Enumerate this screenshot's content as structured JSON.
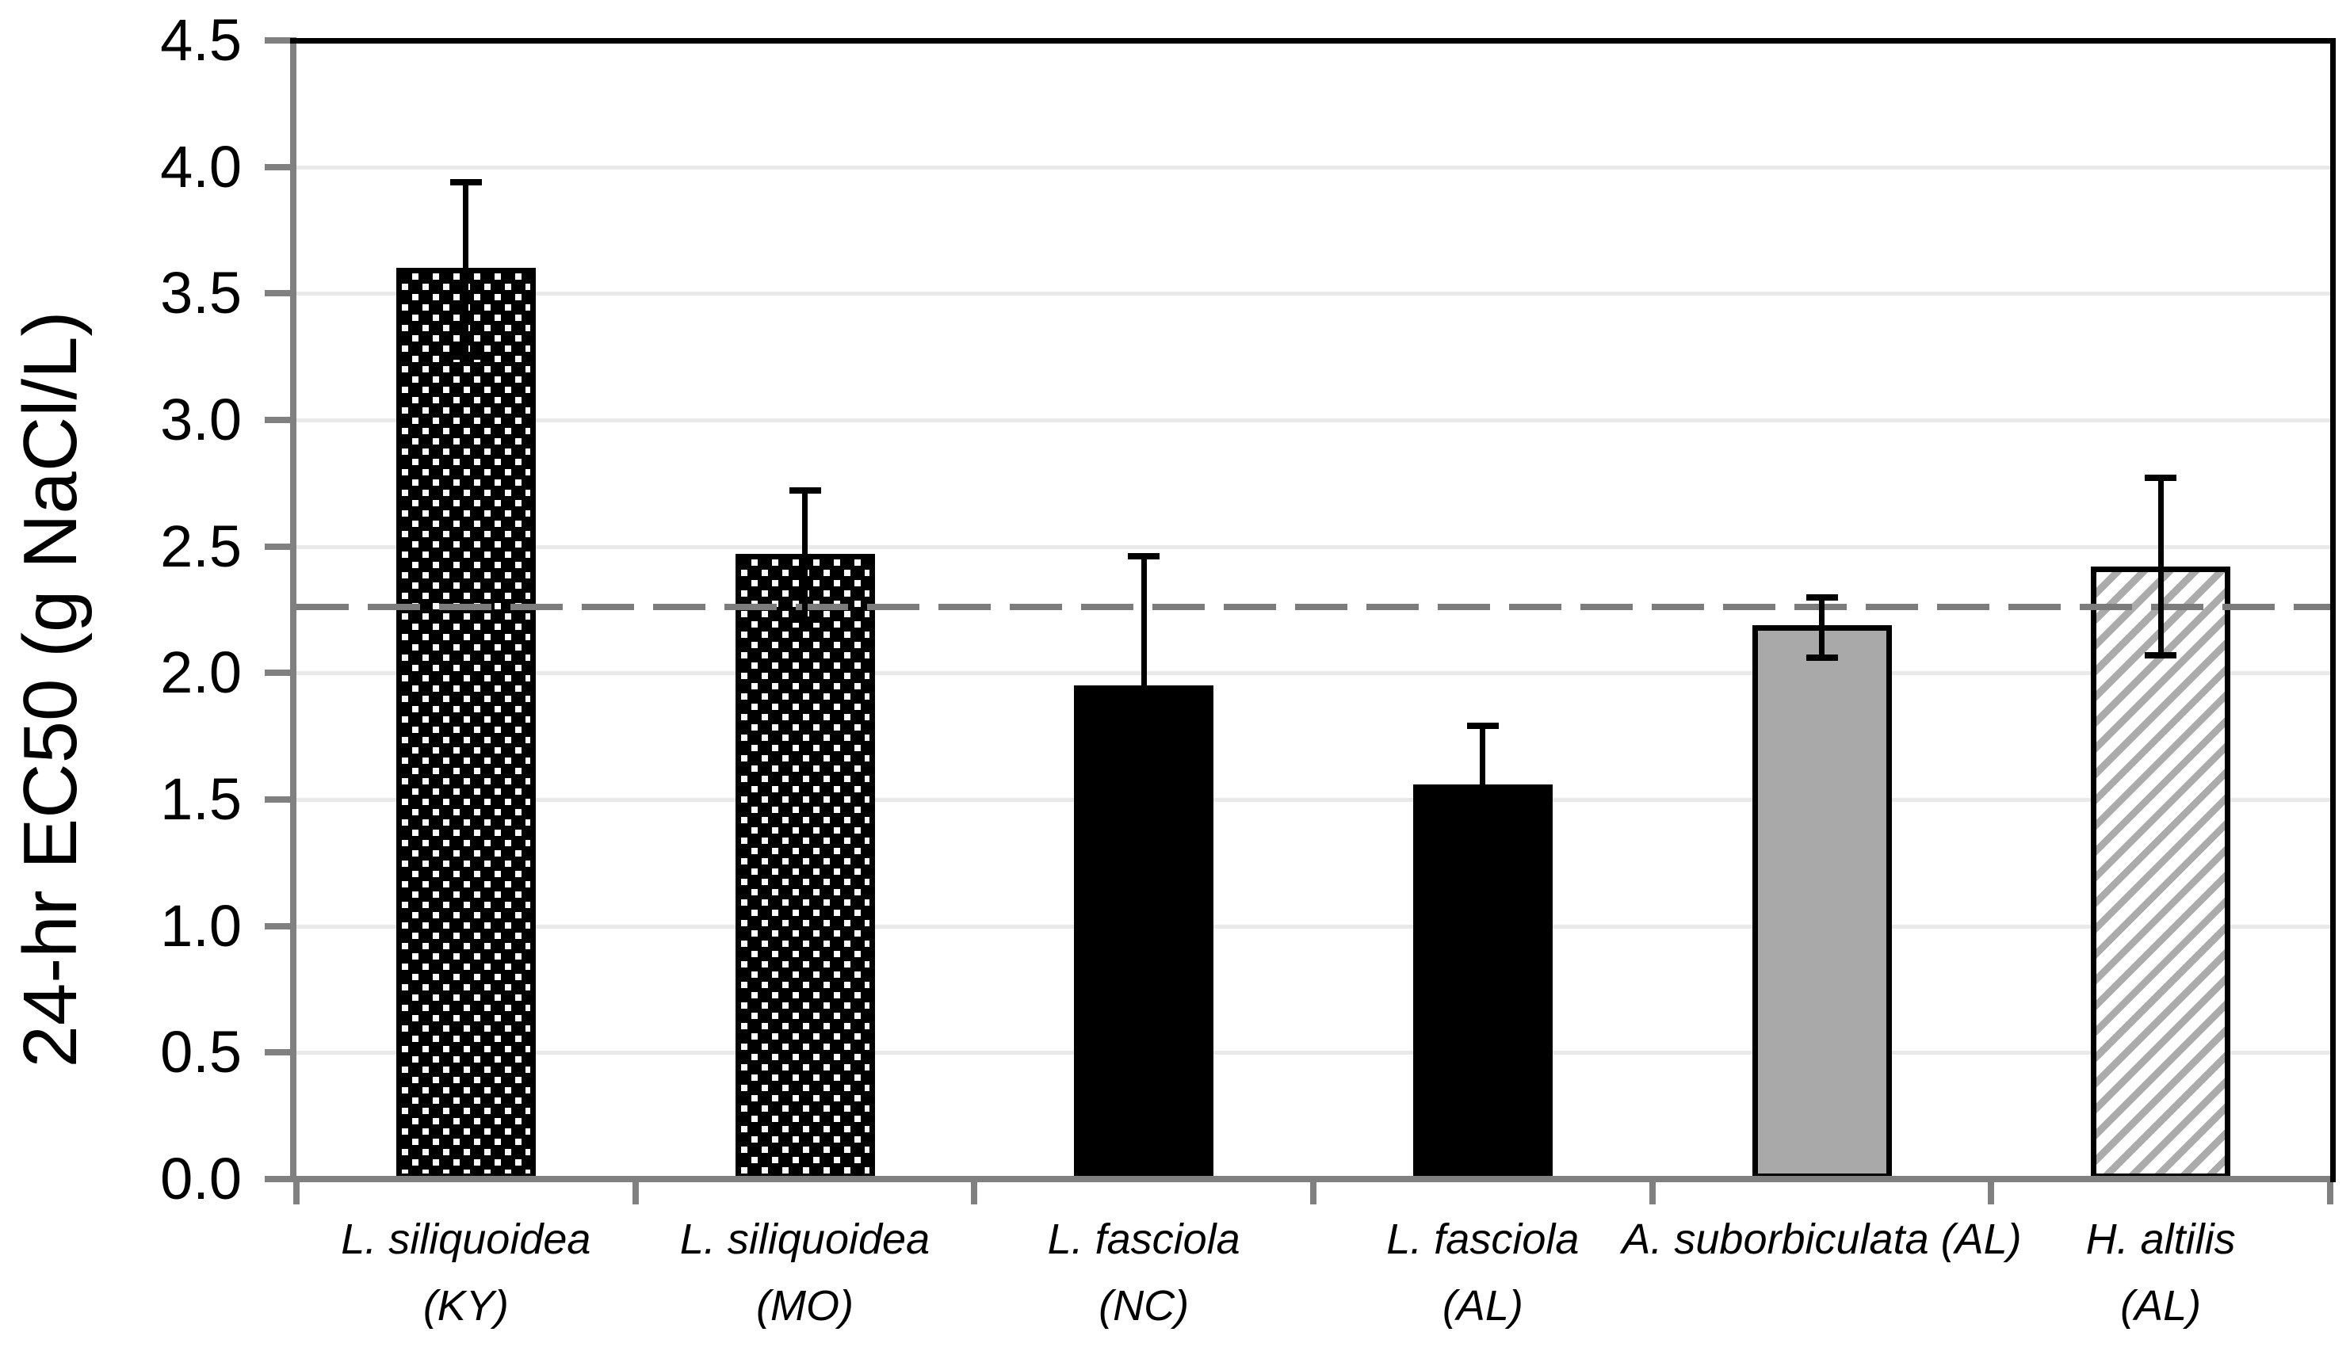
{
  "chart_data": {
    "type": "bar",
    "title": "",
    "xlabel": "",
    "ylabel": "24-hr EC50 (g NaCl/L)",
    "ylim": [
      0,
      4.5
    ],
    "ytick_step": 0.5,
    "ytick_labels": [
      "0.0",
      "0.5",
      "1.0",
      "1.5",
      "2.0",
      "2.5",
      "3.0",
      "3.5",
      "4.0",
      "4.5"
    ],
    "grid": "horizontal",
    "legend": "none",
    "reference_line": {
      "value": 2.26,
      "style": "dashed",
      "color": "#7c7c7c"
    },
    "categories": [
      {
        "line1": "L. siliquoidea",
        "line2": "(KY)"
      },
      {
        "line1": "L. siliquoidea",
        "line2": "(MO)"
      },
      {
        "line1": "L. fasciola",
        "line2": "(NC)"
      },
      {
        "line1": "L. fasciola",
        "line2": "(AL)"
      },
      {
        "line1": "A. suborbiculata (AL)",
        "line2": ""
      },
      {
        "line1": "H. altilis",
        "line2": "(AL)"
      }
    ],
    "bars": [
      {
        "label": "L. siliquoidea (KY)",
        "value": 3.6,
        "error_upper": 3.94,
        "error_lower": 3.25,
        "pattern": "dots"
      },
      {
        "label": "L. siliquoidea (MO)",
        "value": 2.47,
        "error_upper": 2.72,
        "error_lower": 2.21,
        "pattern": "dots"
      },
      {
        "label": "L. fasciola (NC)",
        "value": 1.95,
        "error_upper": 2.46,
        "error_lower": null,
        "pattern": "solid-black"
      },
      {
        "label": "L. fasciola (AL)",
        "value": 1.56,
        "error_upper": 1.79,
        "error_lower": null,
        "pattern": "solid-black"
      },
      {
        "label": "A. suborbiculata (AL)",
        "value": 2.19,
        "error_upper": 2.3,
        "error_lower": 2.06,
        "pattern": "solid-gray"
      },
      {
        "label": "H. altilis (AL)",
        "value": 2.42,
        "error_upper": 2.77,
        "error_lower": 2.07,
        "pattern": "hatch"
      }
    ],
    "colors": {
      "bar_outline": "#000000",
      "solid_black_fill": "#000000",
      "solid_gray_fill": "#a9a9a9",
      "hatch_gray": "#ababab",
      "dot_black": "#000000",
      "axis_gray": "#808080",
      "gridline_gray": "#e9e9e9",
      "dashed_line_gray": "#7c7c7c",
      "text_black": "#000000"
    }
  }
}
